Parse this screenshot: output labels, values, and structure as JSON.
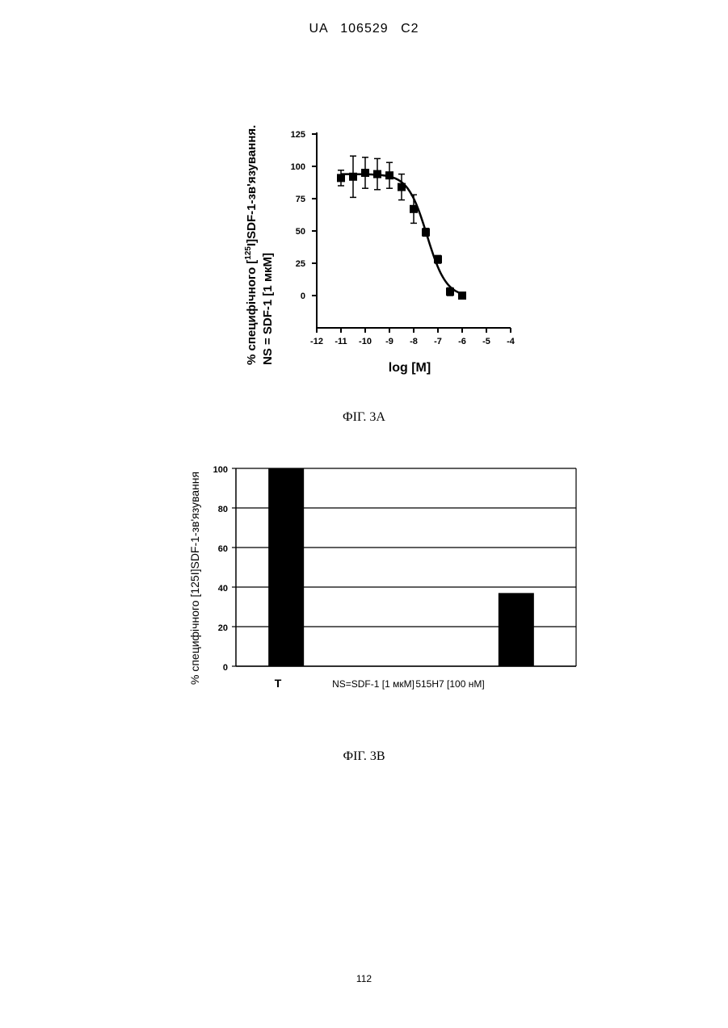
{
  "header": {
    "patent_id": "UA   106529   C2"
  },
  "page_number": "112",
  "figures": [
    {
      "caption": "ФІГ. 3А"
    },
    {
      "caption": "ФІГ. 3В"
    }
  ],
  "chart_data": [
    {
      "type": "scatter",
      "title": "",
      "ylabel_line1_prefix": "% специфічного [",
      "ylabel_line1_sup": "125",
      "ylabel_line1_suffix": "I]SDF-1-зв'язування.",
      "ylabel_line2": "NS = SDF-1 [1 мкМ]",
      "xlabel": "log [M]",
      "xlim": [
        -12,
        -4
      ],
      "ylim": [
        -25,
        125
      ],
      "x_ticks": [
        -12,
        -11,
        -10,
        -9,
        -8,
        -7,
        -6,
        -5,
        -4
      ],
      "x_tick_labels": [
        "-12",
        "-11",
        "-10",
        "-9",
        "-8",
        "-7",
        "-6",
        "-5",
        "-4"
      ],
      "y_ticks": [
        0,
        25,
        50,
        75,
        100,
        125
      ],
      "y_tick_labels": [
        "0",
        "25",
        "50",
        "75",
        "100",
        "125"
      ],
      "points": [
        {
          "x": -11.0,
          "y": 91,
          "err": 6
        },
        {
          "x": -10.5,
          "y": 92,
          "err": 16
        },
        {
          "x": -10.0,
          "y": 95,
          "err": 12
        },
        {
          "x": -9.5,
          "y": 94,
          "err": 12
        },
        {
          "x": -9.0,
          "y": 93,
          "err": 10
        },
        {
          "x": -8.5,
          "y": 84,
          "err": 10
        },
        {
          "x": -8.0,
          "y": 67,
          "err": 11
        },
        {
          "x": -7.5,
          "y": 49,
          "err": 3
        },
        {
          "x": -7.0,
          "y": 28,
          "err": 3
        },
        {
          "x": -6.5,
          "y": 3,
          "err": 3
        },
        {
          "x": -6.0,
          "y": 0,
          "err": 2
        }
      ],
      "fit_curve": {
        "type": "sigmoid",
        "top": 94,
        "bottom": -1,
        "log_ec50": -7.45,
        "hill_slope": -1.1
      }
    },
    {
      "type": "bar",
      "title": "",
      "ylabel": "% специфічного [125I]SDF-1-зв'язування",
      "xlabel": "",
      "categories": [
        "T",
        "NS=SDF-1 [1 мкМ]",
        "515H7 [100 нМ]"
      ],
      "values": [
        100,
        0,
        37
      ],
      "ylim": [
        0,
        100
      ],
      "y_ticks": [
        0,
        20,
        40,
        60,
        80,
        100
      ],
      "y_tick_labels": [
        "0",
        "20",
        "40",
        "60",
        "80",
        "100"
      ],
      "grid": true,
      "bar_color": "#000000"
    }
  ]
}
